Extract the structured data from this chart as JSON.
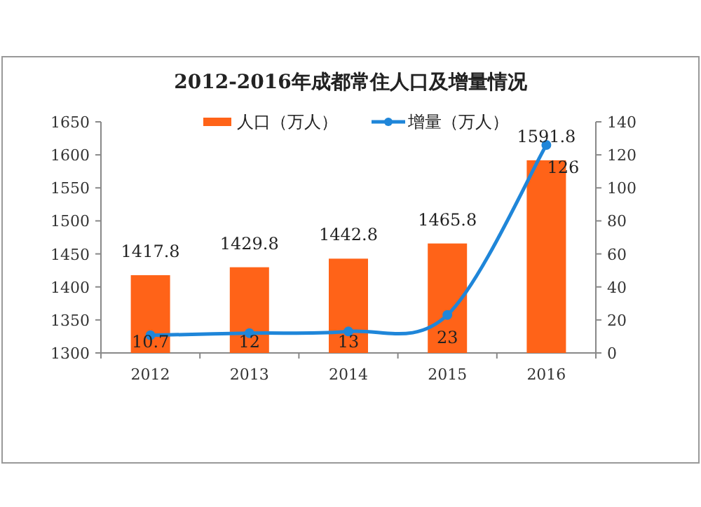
{
  "chart_data": {
    "type": "bar",
    "title": "2012-2016年成都常住人口及增量情况",
    "categories": [
      "2012",
      "2013",
      "2014",
      "2015",
      "2016"
    ],
    "series": [
      {
        "name": "人口（万人）",
        "color": "#ff6318",
        "values": [
          1417.8,
          1429.8,
          1442.8,
          1465.8,
          1591.8
        ]
      },
      {
        "name": "增量（万人）",
        "type": "line",
        "axis": "y2",
        "color": "#1f86d9",
        "values": [
          10.7,
          12,
          13,
          23,
          126
        ],
        "marker": "circle"
      }
    ],
    "ylim": [
      1300,
      1650
    ],
    "yticks": [
      1300,
      1350,
      1400,
      1450,
      1500,
      1550,
      1600,
      1650
    ],
    "y2lim": [
      0,
      140
    ],
    "y2ticks": [
      0,
      20,
      40,
      60,
      80,
      100,
      120,
      140
    ],
    "data_labels": true,
    "legend": "top",
    "grid": false
  }
}
